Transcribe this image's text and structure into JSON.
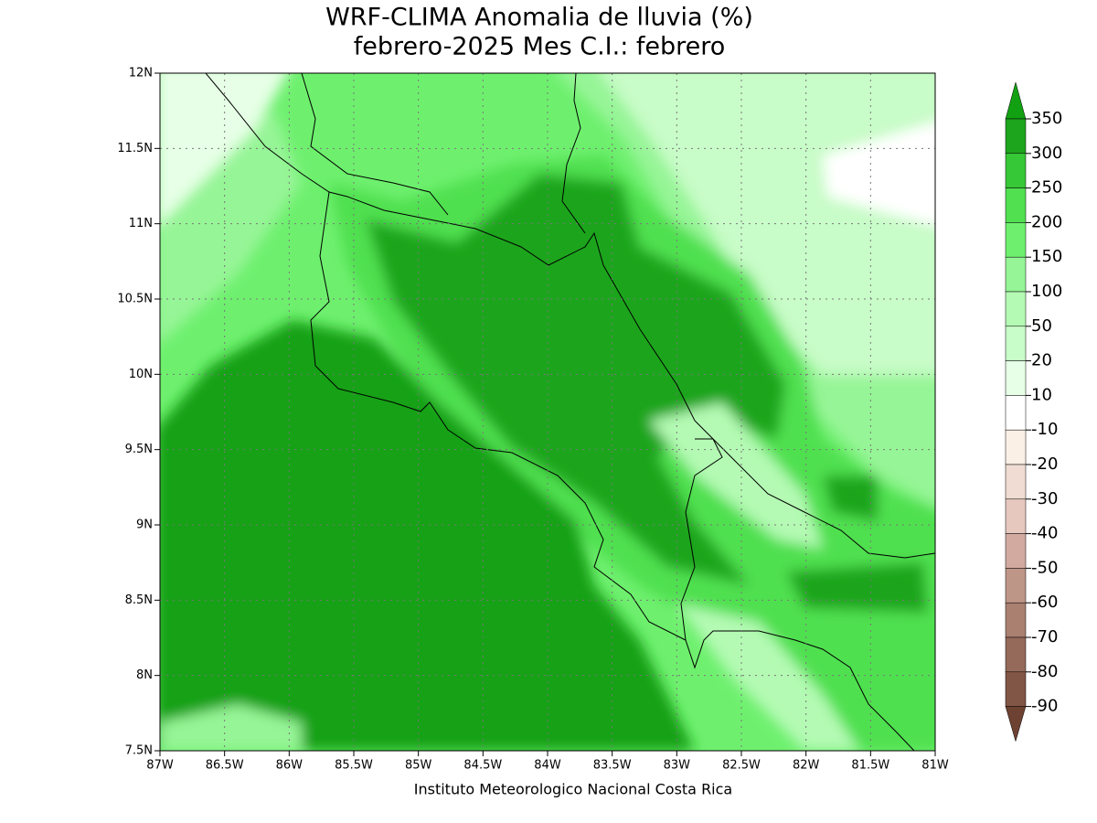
{
  "title": [
    "WRF-CLIMA Anomalia de lluvia (%)",
    "febrero-2025 Mes C.I.: febrero"
  ],
  "x_axis": {
    "labels": [
      "87W",
      "86.5W",
      "86W",
      "85.5W",
      "85W",
      "84.5W",
      "84W",
      "83.5W",
      "83W",
      "82.5W",
      "82W",
      "81.5W",
      "81W"
    ]
  },
  "y_axis": {
    "labels": [
      "12N",
      "11.5N",
      "11N",
      "10.5N",
      "10N",
      "9.5N",
      "9N",
      "8.5N",
      "8N",
      "7.5N"
    ]
  },
  "colorbar": {
    "levels": [
      350,
      300,
      250,
      200,
      150,
      100,
      50,
      20,
      10,
      -10,
      -20,
      -30,
      -40,
      -50,
      -60,
      -70,
      -80,
      -90
    ],
    "colors": [
      "#12a112",
      "#1ea51e",
      "#37c837",
      "#50e050",
      "#6ef06e",
      "#96f596",
      "#b4fab4",
      "#c8fcc8",
      "#e6ffe6",
      "#ffffff",
      "#faf0e6",
      "#f0dcd2",
      "#e6c8be",
      "#d2aaa0",
      "#be9688",
      "#aa8070",
      "#966a5a",
      "#825646",
      "#6e4232"
    ]
  },
  "footer": "Instituto Meteorologico Nacional Costa Rica"
}
